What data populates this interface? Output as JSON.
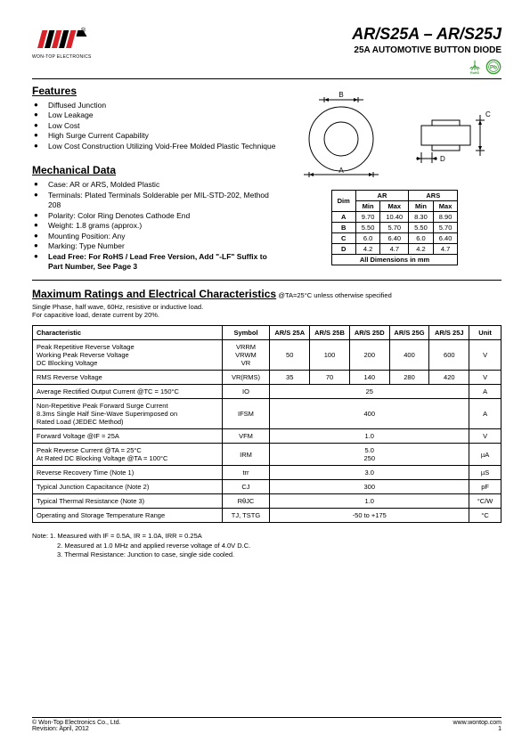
{
  "logo_text": "WON-TOP ELECTRONICS",
  "title": "AR/S25A – AR/S25J",
  "subtitle": "25A AUTOMOTIVE BUTTON DIODE",
  "features_head": "Features",
  "features": [
    "Diffused Junction",
    "Low Leakage",
    "Low Cost",
    "High Surge Current Capability",
    "Low Cost Construction Utilizing Void-Free Molded Plastic Technique"
  ],
  "mech_head": "Mechanical Data",
  "mech": [
    "Case: AR or ARS, Molded Plastic",
    "Terminals: Plated Terminals Solderable per MIL-STD-202, Method 208",
    "Polarity: Color Ring Denotes Cathode End",
    "Weight: 1.8 grams (approx.)",
    "Mounting Position: Any",
    "Marking: Type Number",
    "Lead Free: For RoHS / Lead Free Version, Add \"-LF\" Suffix to Part Number, See Page 3"
  ],
  "dim_labels": {
    "B": "B",
    "A": "A",
    "C": "C",
    "D": "D"
  },
  "dim_table": {
    "head": [
      "Dim",
      "Min",
      "Max",
      "Min",
      "Max"
    ],
    "group_head": [
      "",
      "AR",
      "ARS"
    ],
    "rows": [
      [
        "A",
        "9.70",
        "10.40",
        "8.30",
        "8.90"
      ],
      [
        "B",
        "5.50",
        "5.70",
        "5.50",
        "5.70"
      ],
      [
        "C",
        "6.0",
        "6.40",
        "6.0",
        "6.40"
      ],
      [
        "D",
        "4.2",
        "4.7",
        "4.2",
        "4.7"
      ]
    ],
    "footer": "All Dimensions in mm"
  },
  "max_head": "Maximum Ratings and Electrical Characteristics",
  "max_cond": " @TA=25°C unless otherwise specified",
  "cond_lines": [
    "Single Phase, half wave, 60Hz, resistive or inductive load.",
    "For capacitive load, derate current by 20%."
  ],
  "elec": {
    "head": [
      "Characteristic",
      "Symbol",
      "AR/S 25A",
      "AR/S 25B",
      "AR/S 25D",
      "AR/S 25G",
      "AR/S 25J",
      "Unit"
    ],
    "rows": [
      {
        "char": "Peak Repetitive Reverse Voltage\nWorking Peak Reverse Voltage\nDC Blocking Voltage",
        "sym": "VRRM\nVRWM\nVR",
        "vals": [
          "50",
          "100",
          "200",
          "400",
          "600"
        ],
        "unit": "V"
      },
      {
        "char": "RMS Reverse Voltage",
        "sym": "VR(RMS)",
        "vals": [
          "35",
          "70",
          "140",
          "280",
          "420"
        ],
        "unit": "V"
      },
      {
        "char": "Average Rectified Output Current        @TC = 150°C",
        "sym": "IO",
        "span": "25",
        "unit": "A"
      },
      {
        "char": "Non-Repetitive Peak Forward Surge Current\n8.3ms Single Half Sine-Wave Superimposed on\nRated Load (JEDEC Method)",
        "sym": "IFSM",
        "span": "400",
        "unit": "A"
      },
      {
        "char": "Forward Voltage                                      @IF = 25A",
        "sym": "VFM",
        "span": "1.0",
        "unit": "V"
      },
      {
        "char": "Peak Reverse Current                          @TA = 25°C\nAt Rated DC Blocking Voltage            @TA = 100°C",
        "sym": "IRM",
        "span": "5.0\n250",
        "unit": "µA"
      },
      {
        "char": "Reverse Recovery Time (Note 1)",
        "sym": "trr",
        "span": "3.0",
        "unit": "µS"
      },
      {
        "char": "Typical Junction Capacitance (Note 2)",
        "sym": "CJ",
        "span": "300",
        "unit": "pF"
      },
      {
        "char": "Typical Thermal Resistance (Note 3)",
        "sym": "RθJC",
        "span": "1.0",
        "unit": "°C/W"
      },
      {
        "char": "Operating and Storage Temperature Range",
        "sym": "TJ, TSTG",
        "span": "-50 to +175",
        "unit": "°C"
      }
    ]
  },
  "notes_label": "Note:",
  "notes": [
    "1. Measured with IF = 0.5A, IR = 1.0A, IRR = 0.25A",
    "2. Measured at 1.0 MHz and applied reverse voltage of 4.0V D.C.",
    "3. Thermal Resistance: Junction to case, single side cooled."
  ],
  "footer": {
    "left1": "© Won-Top Electronics Co., Ltd.",
    "left2": "Revision: April, 2012",
    "right": "www.wontop.com",
    "page": "1"
  },
  "colors": {
    "pb_green": "#3a9b35",
    "logo_red": "#d8232a",
    "logo_black": "#000000"
  }
}
